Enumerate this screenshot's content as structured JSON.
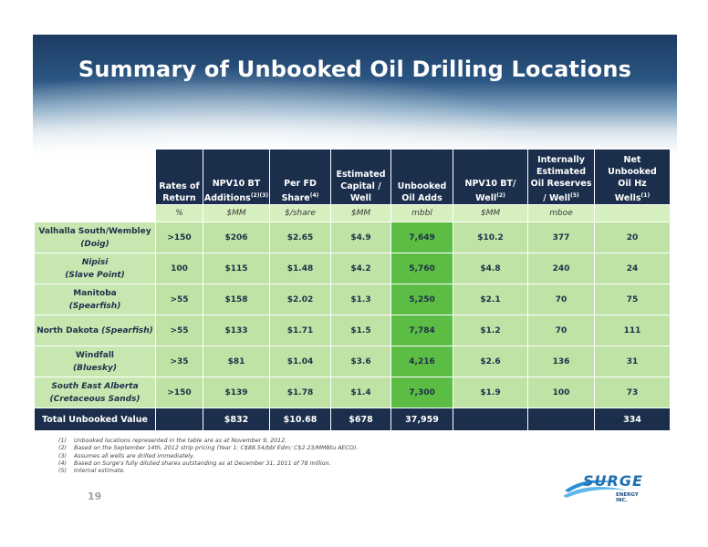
{
  "title": "Summary of Unbooked Oil Drilling Locations",
  "table": {
    "headers": [
      {
        "lines": [
          "Rates of",
          "Return"
        ],
        "sup": ""
      },
      {
        "lines": [
          "NPV10 BT",
          "Additions"
        ],
        "sup": "(2)(3)"
      },
      {
        "lines": [
          "Per FD",
          "Share"
        ],
        "sup": "(4)"
      },
      {
        "lines": [
          "Estimated",
          "Capital /",
          "Well"
        ],
        "sup": ""
      },
      {
        "lines": [
          "Unbooked",
          "Oil Adds"
        ],
        "sup": ""
      },
      {
        "lines": [
          "NPV10 BT/",
          "Well"
        ],
        "sup": "(2)"
      },
      {
        "lines": [
          "Internally",
          "Estimated",
          "Oil Reserves",
          "/ Well"
        ],
        "sup": "(5)"
      },
      {
        "lines": [
          "Net",
          "Unbooked",
          "Oil Hz",
          "Wells"
        ],
        "sup": "(1)"
      }
    ],
    "units": [
      "%",
      "$MM",
      "$/share",
      "$MM",
      "mbbl",
      "$MM",
      "mboe",
      ""
    ],
    "rows": [
      {
        "name": "Valhalla South/Wembley",
        "name_sub": "(Doig)",
        "values": [
          ">150",
          "$206",
          "$2.65",
          "$4.9",
          "7,649",
          "$10.2",
          "377",
          "20"
        ]
      },
      {
        "name": "Nipisi",
        "name_sub": "(Slave Point)",
        "values": [
          "100",
          "$115",
          "$1.48",
          "$4.2",
          "5,760",
          "$4.8",
          "240",
          "24"
        ]
      },
      {
        "name": "Manitoba",
        "name_sub": "(Spearfish)",
        "values": [
          ">55",
          "$158",
          "$2.02",
          "$1.3",
          "5,250",
          "$2.1",
          "70",
          "75"
        ]
      },
      {
        "name": "North Dakota",
        "name_sub": "(Spearfish)",
        "values": [
          ">55",
          "$133",
          "$1.71",
          "$1.5",
          "7,784",
          "$1.2",
          "70",
          "111"
        ]
      },
      {
        "name": "Windfall",
        "name_sub": "(Bluesky)",
        "values": [
          ">35",
          "$81",
          "$1.04",
          "$3.6",
          "4,216",
          "$2.6",
          "136",
          "31"
        ]
      },
      {
        "name": "South East Alberta",
        "name_sub": "(Cretaceous Sands)",
        "values": [
          ">150",
          "$139",
          "$1.78",
          "$1.4",
          "7,300",
          "$1.9",
          "100",
          "73"
        ]
      }
    ],
    "total": {
      "label": "Total Unbooked Value",
      "values": [
        "",
        "$832",
        "$10.68",
        "$678",
        "37,959",
        "",
        "",
        "334"
      ]
    }
  },
  "notes": [
    {
      "num": "(1)",
      "text": "Unbooked locations represented in the table are as at November 9, 2012."
    },
    {
      "num": "(2)",
      "text": "Based on the September 14th, 2012 strip pricing (Year 1: C$88.54/bbl Edm; C$2.23/MMBtu AECO)."
    },
    {
      "num": "(3)",
      "text": "Assumes all wells are drilled immediately."
    },
    {
      "num": "(4)",
      "text": "Based on Surge's fully diluted shares outstanding as at December 31, 2011 of 78 million."
    },
    {
      "num": "(5)",
      "text": "Internal estimate."
    }
  ],
  "page_number": "19",
  "logo": {
    "word": "SURGE",
    "sub": "ENERGY INC."
  },
  "colors": {
    "header": "#1b2e4b",
    "row": "#bfe3a4",
    "highlight": "#5bbd43",
    "units_row": "#d6efbf"
  }
}
